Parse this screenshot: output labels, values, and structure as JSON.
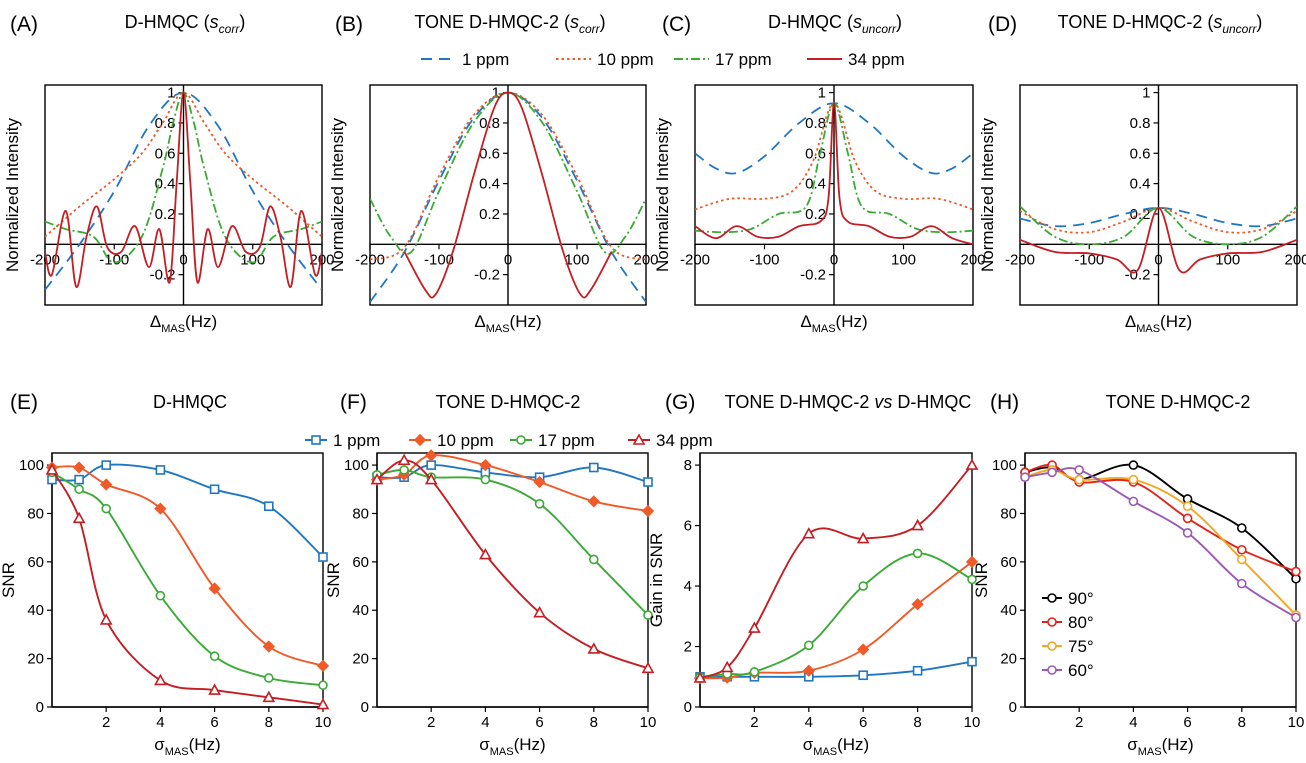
{
  "top_legend": [
    {
      "label": "1 ppm",
      "color": "#1f77c4",
      "dash": "11,7"
    },
    {
      "label": "10 ppm",
      "color": "#f05a28",
      "dash": "2.5,3"
    },
    {
      "label": "17 ppm",
      "color": "#3aaa35",
      "dash": "9,3,2,3"
    },
    {
      "label": "34 ppm",
      "color": "#c41e24",
      "dash": ""
    }
  ],
  "bottom_legend": [
    {
      "label": "1 ppm",
      "color": "#1f77c4",
      "marker": "square"
    },
    {
      "label": "10 ppm",
      "color": "#f05a28",
      "marker": "diamond"
    },
    {
      "label": "17 ppm",
      "color": "#3aaa35",
      "marker": "circle"
    },
    {
      "label": "34 ppm",
      "color": "#c41e24",
      "marker": "triangle"
    }
  ],
  "chart_data": [
    {
      "id": "A",
      "panel_label": "(A)",
      "title_main": "D-HMQC (",
      "title_sub": "s",
      "title_subscript": "corr",
      "title_end": ")",
      "type": "line",
      "xlabel_main": "Δ",
      "xlabel_sub": "MAS",
      "xlabel_end": "(Hz)",
      "ylabel": "Normalized Intensity",
      "xlim": [
        -200,
        200
      ],
      "ylim": [
        -0.4,
        1.05
      ],
      "xticks": [
        "-200",
        "-100",
        "0",
        "100",
        "200"
      ],
      "yticks": [
        "-0.2",
        "0.2",
        "0.4",
        "0.6",
        "0.8",
        "1"
      ],
      "series": [
        {
          "name": "1 ppm",
          "x": [
            -200,
            -150,
            -100,
            -50,
            0,
            50,
            100,
            150,
            200
          ],
          "y": [
            -0.3,
            0.0,
            0.35,
            0.78,
            1.0,
            0.78,
            0.35,
            0.0,
            -0.3
          ]
        },
        {
          "name": "10 ppm",
          "x": [
            -200,
            -150,
            -100,
            -60,
            -30,
            0,
            30,
            60,
            100,
            150,
            200
          ],
          "y": [
            0.05,
            0.25,
            0.43,
            0.6,
            0.8,
            1.0,
            0.8,
            0.6,
            0.43,
            0.25,
            0.05
          ]
        },
        {
          "name": "17 ppm",
          "x": [
            -200,
            -170,
            -130,
            -100,
            -60,
            -30,
            -15,
            0,
            15,
            30,
            60,
            100,
            130,
            170,
            200
          ],
          "y": [
            0.15,
            0.1,
            0.05,
            -0.12,
            0.05,
            0.5,
            0.8,
            1.0,
            0.8,
            0.5,
            0.05,
            -0.12,
            0.05,
            0.1,
            0.15
          ]
        },
        {
          "name": "34 ppm",
          "x": [
            -200,
            -190,
            -170,
            -155,
            -140,
            -125,
            -110,
            -90,
            -70,
            -50,
            -35,
            -20,
            -10,
            0,
            10,
            20,
            35,
            50,
            70,
            90,
            110,
            125,
            140,
            155,
            170,
            190,
            200
          ],
          "y": [
            -0.05,
            -0.2,
            0.22,
            -0.28,
            0.05,
            0.25,
            -0.02,
            -0.05,
            0.12,
            -0.15,
            0.1,
            -0.25,
            0.4,
            1.0,
            0.4,
            -0.25,
            0.1,
            -0.15,
            0.12,
            -0.05,
            -0.02,
            0.25,
            0.05,
            -0.28,
            0.22,
            -0.2,
            -0.05
          ]
        }
      ]
    },
    {
      "id": "B",
      "panel_label": "(B)",
      "title_main": "TONE D-HMQC-2 (",
      "title_sub": "s",
      "title_subscript": "corr",
      "title_end": ")",
      "type": "line",
      "xlabel_main": "Δ",
      "xlabel_sub": "MAS",
      "xlabel_end": "(Hz)",
      "ylabel": "Normalized Intensity",
      "xlim": [
        -200,
        200
      ],
      "ylim": [
        -0.4,
        1.05
      ],
      "xticks": [
        "-200",
        "-100",
        "0",
        "100",
        "200"
      ],
      "yticks": [
        "-0.2",
        "0.2",
        "0.4",
        "0.6",
        "0.8",
        "1"
      ],
      "series": [
        {
          "name": "1 ppm",
          "x": [
            -200,
            -150,
            -100,
            -50,
            0,
            50,
            100,
            150,
            200
          ],
          "y": [
            -0.38,
            -0.05,
            0.42,
            0.83,
            1.0,
            0.83,
            0.42,
            -0.05,
            -0.38
          ]
        },
        {
          "name": "10 ppm",
          "x": [
            -200,
            -150,
            -100,
            -50,
            0,
            50,
            100,
            150,
            200
          ],
          "y": [
            -0.1,
            -0.02,
            0.45,
            0.85,
            1.0,
            0.85,
            0.45,
            -0.02,
            -0.1
          ]
        },
        {
          "name": "17 ppm",
          "x": [
            -200,
            -170,
            -140,
            -100,
            -50,
            0,
            50,
            100,
            140,
            170,
            200
          ],
          "y": [
            0.3,
            0.05,
            -0.05,
            0.35,
            0.8,
            1.0,
            0.8,
            0.35,
            -0.05,
            0.05,
            0.3
          ]
        },
        {
          "name": "34 ppm",
          "x": [
            -150,
            -120,
            -105,
            -80,
            -50,
            -20,
            0,
            20,
            50,
            80,
            105,
            120,
            150
          ],
          "y": [
            -0.05,
            -0.3,
            -0.33,
            -0.05,
            0.45,
            0.9,
            1.0,
            0.9,
            0.45,
            -0.05,
            -0.33,
            -0.3,
            -0.05
          ]
        }
      ]
    },
    {
      "id": "C",
      "panel_label": "(C)",
      "title_main": "D-HMQC (",
      "title_sub": "s",
      "title_subscript": "uncorr",
      "title_end": ")",
      "type": "line",
      "xlabel_main": "Δ",
      "xlabel_sub": "MAS",
      "xlabel_end": "(Hz)",
      "ylabel": "Normalized Intensity",
      "xlim": [
        -200,
        200
      ],
      "ylim": [
        -0.4,
        1.05
      ],
      "xticks": [
        "-200",
        "-100",
        "0",
        "100",
        "200"
      ],
      "yticks": [
        "-0.2",
        "0.2",
        "0.4",
        "0.6",
        "0.8",
        "1"
      ],
      "series": [
        {
          "name": "1 ppm",
          "x": [
            -200,
            -170,
            -140,
            -100,
            -50,
            0,
            50,
            100,
            140,
            170,
            200
          ],
          "y": [
            0.6,
            0.5,
            0.47,
            0.58,
            0.8,
            0.93,
            0.8,
            0.58,
            0.47,
            0.5,
            0.6
          ]
        },
        {
          "name": "10 ppm",
          "x": [
            -200,
            -150,
            -100,
            -60,
            -30,
            0,
            30,
            60,
            100,
            150,
            200
          ],
          "y": [
            0.23,
            0.3,
            0.3,
            0.35,
            0.55,
            0.93,
            0.55,
            0.35,
            0.3,
            0.3,
            0.23
          ]
        },
        {
          "name": "17 ppm",
          "x": [
            -200,
            -160,
            -120,
            -80,
            -40,
            -20,
            0,
            20,
            40,
            80,
            120,
            160,
            200
          ],
          "y": [
            0.09,
            0.08,
            0.1,
            0.2,
            0.25,
            0.6,
            0.93,
            0.6,
            0.25,
            0.2,
            0.1,
            0.08,
            0.09
          ]
        },
        {
          "name": "34 ppm",
          "x": [
            -200,
            -170,
            -140,
            -110,
            -80,
            -50,
            -20,
            -8,
            0,
            8,
            20,
            50,
            80,
            110,
            140,
            170,
            200
          ],
          "y": [
            0.12,
            0.04,
            0.12,
            0.05,
            0.05,
            0.12,
            0.15,
            0.3,
            0.93,
            0.3,
            0.15,
            0.12,
            0.05,
            0.05,
            0.12,
            0.04,
            0.0
          ]
        }
      ]
    },
    {
      "id": "D",
      "panel_label": "(D)",
      "title_main": "TONE D-HMQC-2 (",
      "title_sub": "s",
      "title_subscript": "uncorr",
      "title_end": ")",
      "type": "line",
      "xlabel_main": "Δ",
      "xlabel_sub": "MAS",
      "xlabel_end": "(Hz)",
      "ylabel": "Normalized Intensity",
      "xlim": [
        -200,
        200
      ],
      "ylim": [
        -0.4,
        1.05
      ],
      "xticks": [
        "-200",
        "-100",
        "0",
        "100",
        "200"
      ],
      "yticks": [
        "-0.2",
        "0.2",
        "0.4",
        "0.6",
        "0.8",
        "1"
      ],
      "series": [
        {
          "name": "1 ppm",
          "x": [
            -200,
            -150,
            -100,
            -50,
            0,
            50,
            100,
            150,
            200
          ],
          "y": [
            0.17,
            0.12,
            0.14,
            0.2,
            0.24,
            0.2,
            0.14,
            0.12,
            0.17
          ]
        },
        {
          "name": "10 ppm",
          "x": [
            -200,
            -150,
            -100,
            -50,
            0,
            50,
            100,
            150,
            200
          ],
          "y": [
            0.22,
            0.1,
            0.08,
            0.15,
            0.24,
            0.15,
            0.08,
            0.1,
            0.22
          ]
        },
        {
          "name": "17 ppm",
          "x": [
            -200,
            -150,
            -100,
            -50,
            0,
            50,
            100,
            150,
            200
          ],
          "y": [
            0.25,
            0.05,
            0.0,
            0.05,
            0.24,
            0.05,
            0.0,
            0.05,
            0.25
          ]
        },
        {
          "name": "34 ppm",
          "x": [
            -200,
            -150,
            -100,
            -60,
            -30,
            0,
            30,
            60,
            100,
            150,
            200
          ],
          "y": [
            0.03,
            -0.05,
            -0.06,
            -0.1,
            -0.17,
            0.24,
            -0.17,
            -0.1,
            -0.06,
            -0.05,
            0.03
          ]
        }
      ]
    },
    {
      "id": "E",
      "panel_label": "(E)",
      "title_main": "D-HMQC",
      "title_sub": "",
      "title_subscript": "",
      "title_end": "",
      "type": "line",
      "xlabel_main": "σ",
      "xlabel_sub": "MAS",
      "xlabel_end": "(Hz)",
      "ylabel": "SNR",
      "xlim": [
        0,
        10
      ],
      "ylim": [
        0,
        105
      ],
      "xticks": [
        "2",
        "4",
        "6",
        "8",
        "10"
      ],
      "yticks": [
        "0",
        "20",
        "40",
        "60",
        "80",
        "100"
      ],
      "series": [
        {
          "name": "1 ppm",
          "x": [
            0,
            1,
            2,
            4,
            6,
            8,
            10
          ],
          "y": [
            94,
            94,
            100,
            98,
            90,
            83,
            62
          ]
        },
        {
          "name": "10 ppm",
          "x": [
            0,
            1,
            2,
            4,
            6,
            8,
            10
          ],
          "y": [
            99,
            99,
            92,
            82,
            49,
            25,
            17
          ]
        },
        {
          "name": "17 ppm",
          "x": [
            0,
            1,
            2,
            4,
            6,
            8,
            10
          ],
          "y": [
            97,
            90,
            82,
            46,
            21,
            12,
            9
          ]
        },
        {
          "name": "34 ppm",
          "x": [
            0,
            1,
            2,
            4,
            6,
            8,
            10
          ],
          "y": [
            98,
            78,
            36,
            11,
            7,
            4,
            1
          ]
        }
      ]
    },
    {
      "id": "F",
      "panel_label": "(F)",
      "title_main": "TONE D-HMQC-2",
      "title_sub": "",
      "title_subscript": "",
      "title_end": "",
      "type": "line",
      "xlabel_main": "σ",
      "xlabel_sub": "MAS",
      "xlabel_end": "(Hz)",
      "ylabel": "SNR",
      "xlim": [
        0,
        10
      ],
      "ylim": [
        0,
        105
      ],
      "xticks": [
        "2",
        "4",
        "6",
        "8",
        "10"
      ],
      "yticks": [
        "0",
        "20",
        "40",
        "60",
        "80",
        "100"
      ],
      "series": [
        {
          "name": "1 ppm",
          "x": [
            0,
            1,
            2,
            4,
            6,
            8,
            10
          ],
          "y": [
            95,
            95,
            100,
            97,
            95,
            99,
            93
          ]
        },
        {
          "name": "10 ppm",
          "x": [
            0,
            1,
            2,
            4,
            6,
            8,
            10
          ],
          "y": [
            94,
            96,
            104,
            100,
            93,
            85,
            81
          ]
        },
        {
          "name": "17 ppm",
          "x": [
            0,
            1,
            2,
            4,
            6,
            8,
            10
          ],
          "y": [
            96,
            98,
            95,
            94,
            84,
            61,
            38
          ]
        },
        {
          "name": "34 ppm",
          "x": [
            0,
            1,
            2,
            4,
            6,
            8,
            10
          ],
          "y": [
            94,
            102,
            94,
            63,
            39,
            24,
            16
          ]
        }
      ]
    },
    {
      "id": "G",
      "panel_label": "(G)",
      "title_main": "TONE D-HMQC-2 ",
      "title_sub": "vs",
      "title_subscript": "",
      "title_end": " D-HMQC",
      "type": "line",
      "xlabel_main": "σ",
      "xlabel_sub": "MAS",
      "xlabel_end": "(Hz)",
      "ylabel": "Gain in SNR",
      "xlim": [
        0,
        10
      ],
      "ylim": [
        0,
        8.4
      ],
      "xticks": [
        "2",
        "4",
        "6",
        "8",
        "10"
      ],
      "yticks": [
        "0",
        "2",
        "4",
        "6",
        "8"
      ],
      "series": [
        {
          "name": "1 ppm",
          "x": [
            0,
            1,
            2,
            4,
            6,
            8,
            10
          ],
          "y": [
            1.0,
            1.0,
            1.0,
            1.0,
            1.05,
            1.2,
            1.5
          ]
        },
        {
          "name": "10 ppm",
          "x": [
            0,
            1,
            2,
            4,
            6,
            8,
            10
          ],
          "y": [
            0.95,
            0.97,
            1.13,
            1.2,
            1.9,
            3.4,
            4.8
          ]
        },
        {
          "name": "17 ppm",
          "x": [
            0,
            1,
            2,
            4,
            6,
            8,
            10
          ],
          "y": [
            0.99,
            1.09,
            1.16,
            2.04,
            4.0,
            5.08,
            4.22
          ]
        },
        {
          "name": "34 ppm",
          "x": [
            0,
            1,
            2,
            4,
            6,
            8,
            10
          ],
          "y": [
            0.96,
            1.31,
            2.61,
            5.73,
            5.57,
            6.0,
            8.0
          ]
        }
      ]
    },
    {
      "id": "H",
      "panel_label": "(H)",
      "title_main": "TONE D-HMQC-2",
      "title_sub": "",
      "title_subscript": "",
      "title_end": "",
      "type": "line",
      "xlabel_main": "σ",
      "xlabel_sub": "MAS",
      "xlabel_end": "(Hz)",
      "ylabel": "SNR",
      "xlim": [
        0,
        10
      ],
      "ylim": [
        0,
        105
      ],
      "xticks": [
        "2",
        "4",
        "6",
        "8",
        "10"
      ],
      "yticks": [
        "0",
        "20",
        "40",
        "60",
        "80",
        "100"
      ],
      "legend": [
        {
          "label": "90°",
          "color": "#000000"
        },
        {
          "label": "80°",
          "color": "#e32219"
        },
        {
          "label": "75°",
          "color": "#f5a623"
        },
        {
          "label": "60°",
          "color": "#9b59b6"
        }
      ],
      "series": [
        {
          "name": "90°",
          "x": [
            0,
            1,
            2,
            4,
            6,
            8,
            10
          ],
          "y": [
            97,
            99,
            94,
            100,
            86,
            74,
            53
          ]
        },
        {
          "name": "80°",
          "x": [
            0,
            1,
            2,
            4,
            6,
            8,
            10
          ],
          "y": [
            97,
            100,
            93,
            93,
            78,
            65,
            56
          ]
        },
        {
          "name": "75°",
          "x": [
            0,
            1,
            2,
            4,
            6,
            8,
            10
          ],
          "y": [
            95,
            98,
            94,
            94,
            83,
            61,
            38
          ]
        },
        {
          "name": "60°",
          "x": [
            0,
            1,
            2,
            4,
            6,
            8,
            10
          ],
          "y": [
            95,
            97,
            98,
            85,
            72,
            51,
            37
          ]
        }
      ]
    }
  ]
}
